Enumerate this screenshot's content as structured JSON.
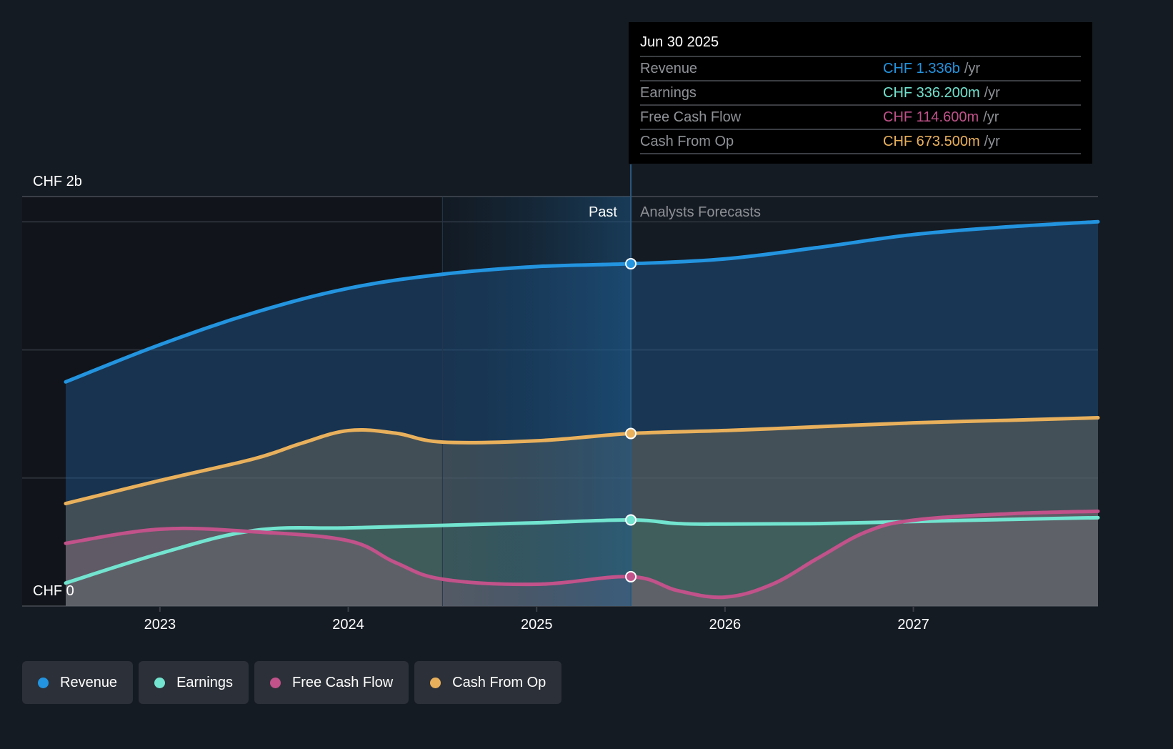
{
  "chart_data": {
    "type": "area",
    "title": "",
    "ylabel": "",
    "xlabel": "",
    "y_unit_labels": {
      "top": "CHF 2b",
      "bottom": "CHF 0"
    },
    "ylim": [
      0,
      2.0
    ],
    "y_units": "CHF billions",
    "x_ticks": [
      "2023",
      "2024",
      "2025",
      "2026",
      "2027"
    ],
    "x_range": [
      2022.5,
      2027.98
    ],
    "divider_x": 2025.5,
    "highlight_start_x": 2024.5,
    "region_labels": {
      "past": "Past",
      "forecast": "Analysts Forecasts"
    },
    "series": [
      {
        "name": "Revenue",
        "color": "#2394df",
        "x": [
          2022.5,
          2023.0,
          2023.5,
          2024.0,
          2024.5,
          2025.0,
          2025.5,
          2026.0,
          2026.5,
          2027.0,
          2027.5,
          2027.98
        ],
        "values": [
          0.875,
          1.02,
          1.145,
          1.24,
          1.295,
          1.325,
          1.336,
          1.355,
          1.4,
          1.45,
          1.48,
          1.5
        ]
      },
      {
        "name": "Cash From Op",
        "color": "#e9b05c",
        "x": [
          2022.5,
          2023.0,
          2023.5,
          2023.75,
          2024.0,
          2024.25,
          2024.5,
          2025.0,
          2025.5,
          2026.0,
          2026.5,
          2027.0,
          2027.5,
          2027.98
        ],
        "values": [
          0.4,
          0.49,
          0.575,
          0.635,
          0.685,
          0.675,
          0.64,
          0.645,
          0.6735,
          0.685,
          0.7,
          0.715,
          0.725,
          0.735
        ]
      },
      {
        "name": "Earnings",
        "color": "#72e4cf",
        "x": [
          2022.5,
          2023.0,
          2023.5,
          2024.0,
          2024.5,
          2025.0,
          2025.5,
          2025.75,
          2026.0,
          2026.5,
          2027.0,
          2027.5,
          2027.98
        ],
        "values": [
          0.09,
          0.205,
          0.295,
          0.305,
          0.315,
          0.325,
          0.3362,
          0.322,
          0.32,
          0.322,
          0.33,
          0.338,
          0.345
        ]
      },
      {
        "name": "Free Cash Flow",
        "color": "#c1528a",
        "x": [
          2022.5,
          2023.0,
          2023.5,
          2024.0,
          2024.25,
          2024.5,
          2025.0,
          2025.5,
          2025.75,
          2026.0,
          2026.25,
          2026.5,
          2026.75,
          2027.0,
          2027.5,
          2027.98
        ],
        "values": [
          0.245,
          0.3,
          0.29,
          0.255,
          0.17,
          0.105,
          0.085,
          0.1146,
          0.06,
          0.035,
          0.085,
          0.19,
          0.29,
          0.335,
          0.36,
          0.37
        ]
      }
    ],
    "tooltip": {
      "date": "Jun 30 2025",
      "rows": [
        {
          "label": "Revenue",
          "value": "CHF 1.336b",
          "unit": "/yr",
          "color": "#2394df"
        },
        {
          "label": "Earnings",
          "value": "CHF 336.200m",
          "unit": "/yr",
          "color": "#72e4cf"
        },
        {
          "label": "Free Cash Flow",
          "value": "CHF 114.600m",
          "unit": "/yr",
          "color": "#c1528a"
        },
        {
          "label": "Cash From Op",
          "value": "CHF 673.500m",
          "unit": "/yr",
          "color": "#e9b05c"
        }
      ]
    },
    "legend": [
      {
        "label": "Revenue",
        "color": "#2394df"
      },
      {
        "label": "Earnings",
        "color": "#72e4cf"
      },
      {
        "label": "Free Cash Flow",
        "color": "#c1528a"
      },
      {
        "label": "Cash From Op",
        "color": "#e9b05c"
      }
    ]
  }
}
